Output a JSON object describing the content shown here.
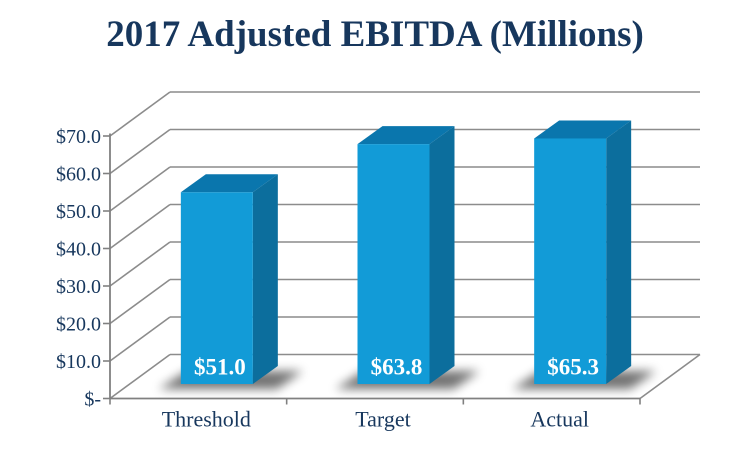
{
  "title": "2017 Adjusted EBITDA (Millions)",
  "colors": {
    "title_text": "#17375D",
    "axis_text": "#17375D",
    "bar_front": "#129BD7",
    "bar_top": "#0A76AD",
    "bar_side": "#0C6E9D",
    "gridline": "#8C8C8C",
    "axis_line": "#808080",
    "data_label_text": "#FFFFFF",
    "shadow": "#000000",
    "background": "#FFFFFF"
  },
  "chart_data": {
    "type": "bar",
    "projection": "3d",
    "title": "2017 Adjusted EBITDA (Millions)",
    "categories": [
      "Threshold",
      "Target",
      "Actual"
    ],
    "values": [
      51.0,
      63.8,
      65.3
    ],
    "data_labels": [
      "$51.0",
      "$63.8",
      "$65.3"
    ],
    "y_ticks": [
      0,
      10,
      20,
      30,
      40,
      50,
      60,
      70
    ],
    "y_tick_labels": [
      "$-",
      "$10.0",
      "$20.0",
      "$30.0",
      "$40.0",
      "$50.0",
      "$60.0",
      "$70.0"
    ],
    "ylim": [
      0,
      70
    ],
    "xlabel": "",
    "ylabel": "",
    "legend": null,
    "grid": true
  }
}
